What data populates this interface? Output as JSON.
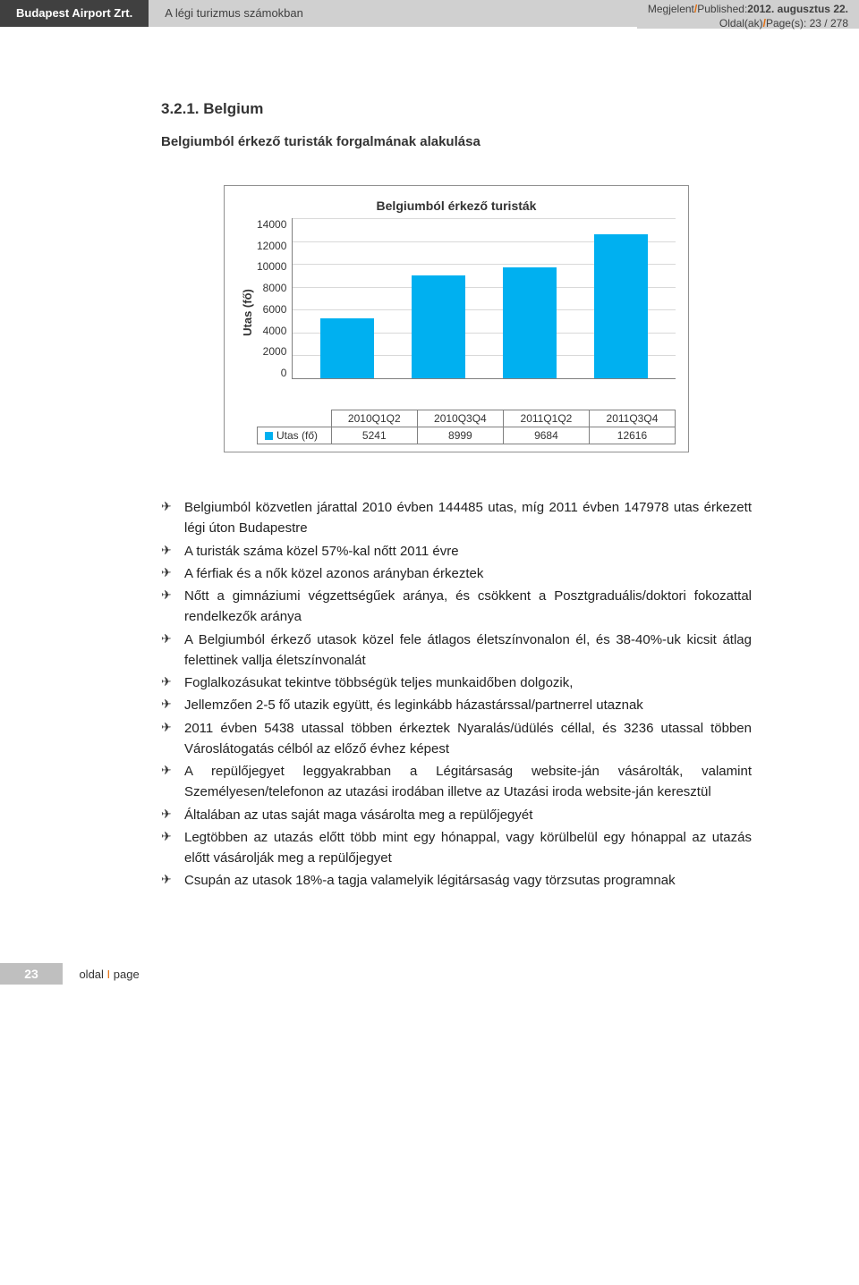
{
  "header": {
    "left_tab": "Budapest Airport Zrt.",
    "middle_tab": "A légi turizmus számokban",
    "published_label": "Megjelent",
    "published_sep": "/",
    "published_label_en": "Published:",
    "published_value": "2012. augusztus 22.",
    "pages_label": "Oldal(ak)",
    "pages_label_en": "Page(s): ",
    "pages_value": "23 / 278"
  },
  "section": {
    "number": "3.2.1.",
    "title": "Belgium",
    "subtitle": "Belgiumból érkező turisták forgalmának alakulása"
  },
  "chart": {
    "type": "bar",
    "title": "Belgiumból érkező turisták",
    "ylabel": "Utas (fő)",
    "ymax": 14000,
    "ymin": 0,
    "ytick_step": 2000,
    "yticks": [
      "14000",
      "12000",
      "10000",
      "8000",
      "6000",
      "4000",
      "2000",
      "0"
    ],
    "categories": [
      "2010Q1Q2",
      "2010Q3Q4",
      "2011Q1Q2",
      "2011Q3Q4"
    ],
    "row_label": "Utas (fő)",
    "values": [
      5241,
      8999,
      9684,
      12616
    ],
    "bar_color": "#00b0f0",
    "grid_color": "#d9d9d9",
    "axis_color": "#808080",
    "background_color": "#ffffff",
    "legend_square_color": "#00b0f0"
  },
  "bullets": [
    "Belgiumból közvetlen járattal 2010 évben 144485 utas, míg 2011 évben 147978 utas érkezett légi úton Budapestre",
    "A turisták száma közel 57%-kal nőtt 2011 évre",
    "A férfiak és a nők közel azonos arányban érkeztek",
    "Nőtt a gimnáziumi végzettségűek aránya, és csökkent a Posztgraduális/doktori fokozattal rendelkezők aránya",
    "A Belgiumból érkező utasok közel fele átlagos életszínvonalon él, és 38-40%-uk kicsit átlag felettinek vallja életszínvonalát",
    "Foglalkozásukat tekintve többségük teljes munkaidőben dolgozik,",
    "Jellemzően 2-5 fő utazik együtt, és leginkább házastárssal/partnerrel utaznak",
    "2011 évben 5438 utassal többen érkeztek Nyaralás/üdülés céllal, és 3236 utassal többen Városlátogatás célból az előző évhez képest",
    "A repülőjegyet leggyakrabban a Légitársaság website-ján vásárolták, valamint Személyesen/telefonon az utazási irodában illetve az Utazási iroda website-ján keresztül",
    "Általában az utas saját maga vásárolta meg a repülőjegyét",
    "Legtöbben az utazás előtt több mint egy hónappal, vagy körülbelül egy hónappal az utazás előtt vásárolják meg a repülőjegyet",
    "Csupán az utasok 18%-a tagja valamelyik légitársaság vagy törzsutas programnak"
  ],
  "footer": {
    "page_number": "23",
    "label_hu": "oldal",
    "sep": "I",
    "label_en": "page"
  }
}
